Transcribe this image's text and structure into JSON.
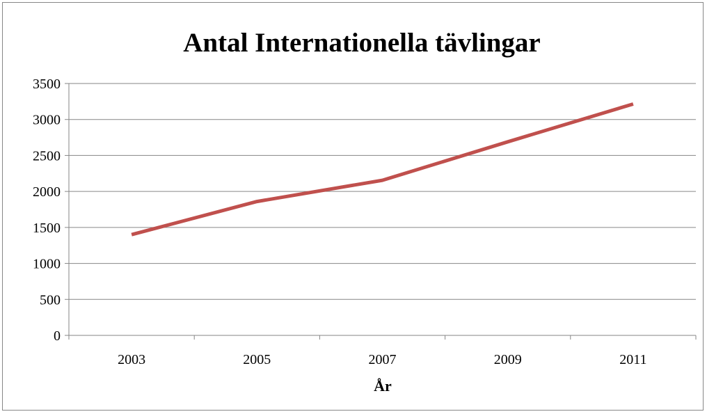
{
  "chart_data": {
    "type": "line",
    "title": "Antal Internationella tävlingar",
    "xlabel": "År",
    "ylabel": "",
    "categories": [
      "2003",
      "2005",
      "2007",
      "2009",
      "2011"
    ],
    "series": [
      {
        "values": [
          1400,
          1860,
          2155,
          2690,
          3215
        ],
        "color": "#C0504D"
      }
    ],
    "ylim": [
      0,
      3500
    ],
    "yticks": [
      0,
      500,
      1000,
      1500,
      2000,
      2500,
      3000,
      3500
    ],
    "grid": true,
    "gridline_color": "#868686",
    "legend": "none"
  }
}
